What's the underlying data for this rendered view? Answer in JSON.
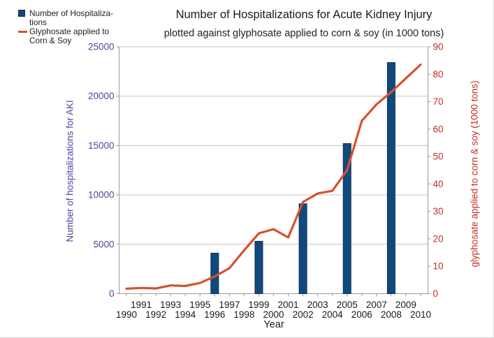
{
  "chart_data": {
    "type": "bar+line",
    "title": "Number of Hospitalizations for Acute Kidney Injury",
    "subtitle": "plotted against glyphosate applied to corn & soy (in 1000 tons)",
    "xlabel": "Year",
    "categories": [
      1990,
      1991,
      1992,
      1993,
      1994,
      1995,
      1996,
      1997,
      1998,
      1999,
      2000,
      2001,
      2002,
      2003,
      2004,
      2005,
      2006,
      2007,
      2008,
      2009,
      2010
    ],
    "series": [
      {
        "name": "Number of Hospitalizations",
        "type": "bar",
        "axis": "left",
        "color": "#11497d",
        "border_color": "#0c2f55",
        "x": [
          1996,
          1999,
          2002,
          2005,
          2008
        ],
        "values": [
          4100,
          5300,
          9100,
          15200,
          23400
        ]
      },
      {
        "name": "Glyphosate applied to Corn & Soy",
        "type": "line",
        "axis": "right",
        "color": "#d6512f",
        "x": [
          1990,
          1991,
          1992,
          1993,
          1994,
          1995,
          1996,
          1997,
          1998,
          1999,
          2000,
          2001,
          2002,
          2003,
          2004,
          2005,
          2006,
          2007,
          2008,
          2009,
          2010
        ],
        "values": [
          1.8,
          2.1,
          1.9,
          3.0,
          2.8,
          3.9,
          6.3,
          9.3,
          15.8,
          22.0,
          23.5,
          20.5,
          33.4,
          36.5,
          37.5,
          45.0,
          63.0,
          69.0,
          73.5,
          78.5,
          83.5
        ]
      }
    ],
    "left_axis": {
      "title": "Number of hospitalizations for AKI",
      "min": 0,
      "max": 25000,
      "tick_step": 5000,
      "color": "#5b3f9e"
    },
    "right_axis": {
      "title": "glyphosate applied to corn & soy (1000 tons)",
      "min": 0,
      "max": 90,
      "tick_step": 10,
      "color": "#c62d23"
    },
    "x_axis": {
      "min": 1990,
      "max": 2010,
      "tick_step": 1,
      "label_color": "#1a1a1a"
    },
    "grid": true,
    "grid_color": "#c6c6c6",
    "axis_line_color": "#9b9b9b",
    "legend_position": "top-left"
  },
  "legend": {
    "items": [
      {
        "line1": "Number of Hospitaliza-",
        "line2": "tions",
        "swatch": "square",
        "color": "#11497d"
      },
      {
        "line1": "Glyphosate applied to",
        "line2": "Corn & Soy",
        "swatch": "line",
        "color": "#d6512f"
      }
    ]
  }
}
